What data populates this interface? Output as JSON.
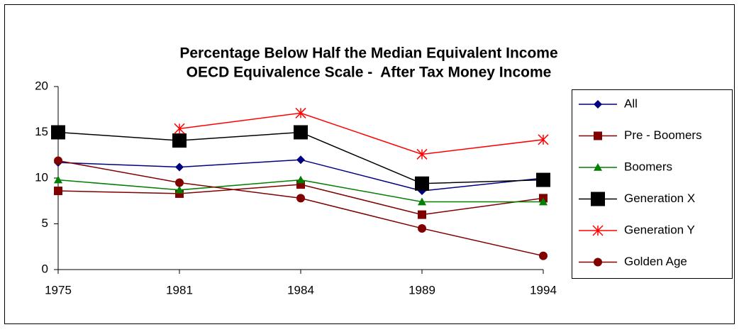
{
  "chart_data": {
    "type": "line",
    "title": "Percentage Below Half the Median Equivalent Income",
    "subtitle": "OECD Equivalence Scale -  After Tax Money Income",
    "categories": [
      "1975",
      "1981",
      "1984",
      "1989",
      "1994"
    ],
    "ylim": [
      0,
      20
    ],
    "yticks": [
      0,
      5,
      10,
      15,
      20
    ],
    "grid": false,
    "legend": "right",
    "series": [
      {
        "name": "All",
        "color": "#000080",
        "marker": "diamond",
        "marker_size": 6,
        "values": [
          11.7,
          11.2,
          12.0,
          8.6,
          10.0
        ]
      },
      {
        "name": "Pre - Boomers",
        "color": "#800000",
        "marker": "square",
        "marker_size": 6,
        "values": [
          8.6,
          8.3,
          9.3,
          6.0,
          7.8
        ]
      },
      {
        "name": "Boomers",
        "color": "#008000",
        "marker": "triangle",
        "marker_size": 6,
        "values": [
          9.8,
          8.7,
          9.8,
          7.4,
          7.4
        ]
      },
      {
        "name": "Generation X",
        "color": "#000000",
        "marker": "square",
        "marker_size": 10,
        "values": [
          15.0,
          14.1,
          15.0,
          9.4,
          9.8
        ]
      },
      {
        "name": "Generation Y",
        "color": "#ff0000",
        "marker": "star",
        "marker_size": 7,
        "values": [
          null,
          15.4,
          17.1,
          12.6,
          14.2
        ]
      },
      {
        "name": "Golden Age",
        "color": "#800000",
        "marker": "circle",
        "marker_size": 6,
        "values": [
          11.9,
          9.5,
          7.8,
          4.5,
          1.5
        ]
      }
    ]
  }
}
